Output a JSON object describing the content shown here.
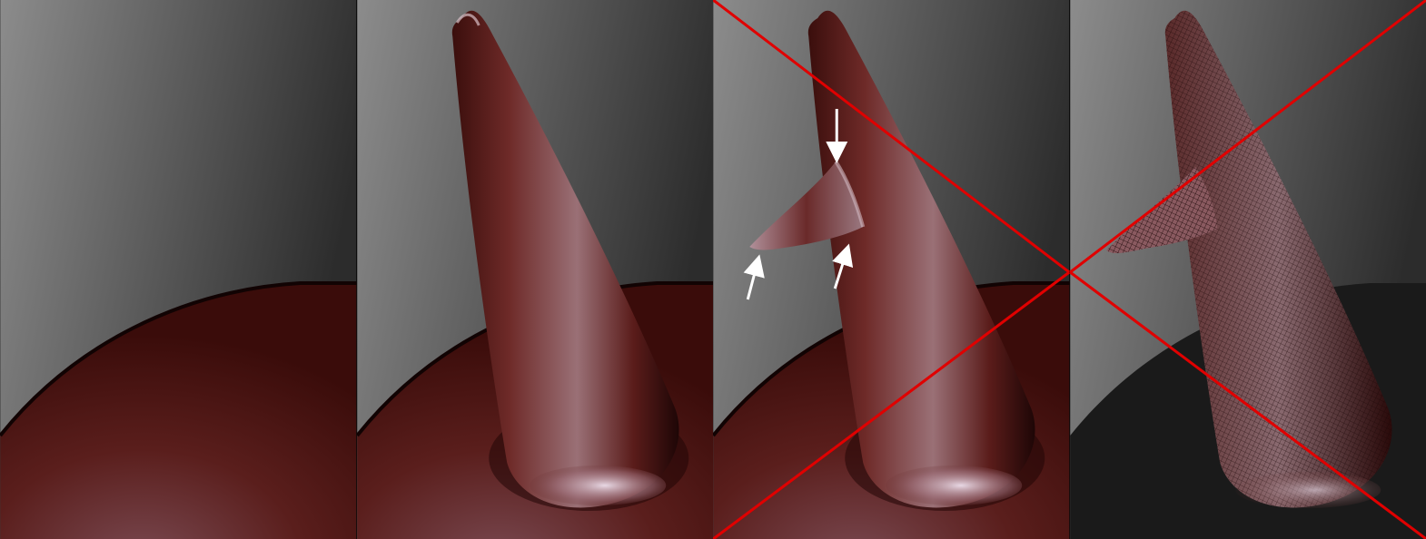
{
  "figure": {
    "panels": [
      {
        "id": "base-surface",
        "shows_spike": false,
        "shows_fin": false,
        "crossed_out": false,
        "wireframe": false
      },
      {
        "id": "smooth-spike",
        "shows_spike": true,
        "shows_fin": false,
        "crossed_out": false,
        "wireframe": false
      },
      {
        "id": "spike-with-fin-artifact",
        "shows_spike": true,
        "shows_fin": true,
        "crossed_out": true,
        "wireframe": false,
        "arrow_count": 3
      },
      {
        "id": "wireframe-mesh",
        "shows_spike": true,
        "shows_fin": true,
        "crossed_out": true,
        "wireframe": true
      }
    ],
    "colors": {
      "background_light": "#8a8a8a",
      "background_dark": "#2e2e2e",
      "surface": "#6e2a26",
      "surface_highlight": "#c9a9b0",
      "surface_shadow": "#1e0606",
      "cross": "#e00000",
      "arrow": "#ffffff",
      "wire_background": "#1a1a1a"
    }
  }
}
